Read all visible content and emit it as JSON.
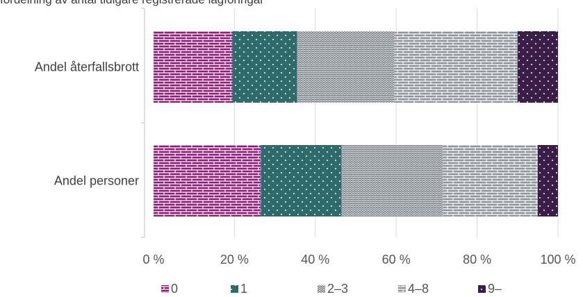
{
  "caption": "fördelning av antal tidigare registrerade lagföringar",
  "chart_data": {
    "type": "bar",
    "orientation": "horizontal",
    "stacked": true,
    "percent": true,
    "categories": [
      "Andel återfallsbrott",
      "Andel personer"
    ],
    "series": [
      {
        "name": "0",
        "color": "#8e1c78",
        "pattern": "brick",
        "values": [
          19.5,
          26.5
        ]
      },
      {
        "name": "1",
        "color": "#2f6b6b",
        "pattern": "dots",
        "values": [
          16,
          20
        ]
      },
      {
        "name": "2–3",
        "color": "#7a8088",
        "pattern": "wave",
        "values": [
          24,
          25
        ]
      },
      {
        "name": "4–8",
        "color": "#8f959c",
        "pattern": "brick",
        "values": [
          30.5,
          23.5
        ]
      },
      {
        "name": "9–",
        "color": "#3a1e47",
        "pattern": "dots",
        "values": [
          10,
          5
        ]
      }
    ],
    "xticks": [
      "0 %",
      "20 %",
      "40 %",
      "60 %",
      "80 %",
      "100 %"
    ],
    "xlim": [
      0,
      100
    ],
    "grid": true,
    "legend_position": "bottom"
  }
}
